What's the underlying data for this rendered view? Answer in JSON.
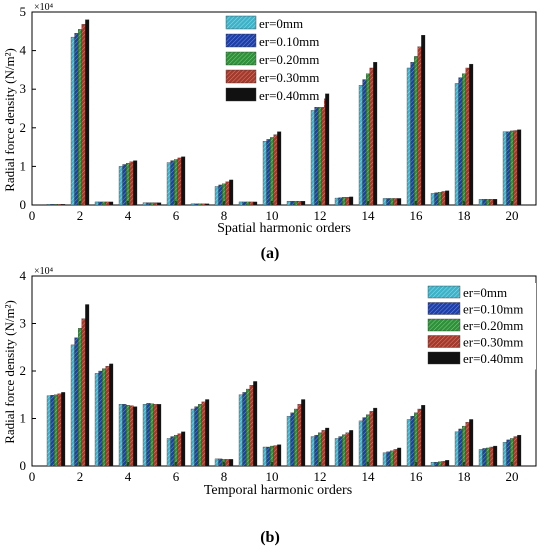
{
  "colors": {
    "series": [
      "#3fb2c8",
      "#1f3fa8",
      "#2f8f3a",
      "#a23a2e",
      "#111111"
    ],
    "hatch": [
      "#8fe0ee",
      "#6f8fe0",
      "#7ad07f",
      "#e08070",
      "#555555"
    ]
  },
  "chart_data": [
    {
      "type": "bar",
      "caption": "(a)",
      "xlabel": "Spatial harmonic orders",
      "ylabel": "Radial force density (N/m²)",
      "exponent_label": "×10⁴",
      "xlim": [
        0,
        21
      ],
      "ylim": [
        0,
        5
      ],
      "x_ticks": [
        "0",
        "2",
        "4",
        "6",
        "8",
        "10",
        "12",
        "14",
        "16",
        "18",
        "20"
      ],
      "y_ticks": [
        "0",
        "1",
        "2",
        "3",
        "4",
        "5"
      ],
      "legend_position": "top-center",
      "categories": [
        1,
        2,
        3,
        4,
        5,
        6,
        7,
        8,
        9,
        10,
        11,
        12,
        13,
        14,
        15,
        16,
        17,
        18,
        19,
        20
      ],
      "series": [
        {
          "name": "er=0mm",
          "values": [
            0.02,
            4.35,
            0.08,
            1.0,
            0.06,
            1.1,
            0.03,
            0.48,
            0.08,
            1.65,
            0.1,
            2.45,
            0.18,
            3.1,
            0.17,
            3.55,
            0.3,
            3.15,
            0.15,
            1.9
          ]
        },
        {
          "name": "er=0.10mm",
          "values": [
            0.02,
            4.45,
            0.08,
            1.05,
            0.06,
            1.15,
            0.03,
            0.52,
            0.08,
            1.7,
            0.1,
            2.55,
            0.19,
            3.25,
            0.17,
            3.7,
            0.32,
            3.3,
            0.15,
            1.9
          ]
        },
        {
          "name": "er=0.20mm",
          "values": [
            0.02,
            4.55,
            0.08,
            1.08,
            0.06,
            1.18,
            0.03,
            0.55,
            0.08,
            1.75,
            0.1,
            2.65,
            0.2,
            3.4,
            0.17,
            3.85,
            0.33,
            3.4,
            0.15,
            1.92
          ]
        },
        {
          "name": "er=0.30mm",
          "values": [
            0.02,
            4.68,
            0.08,
            1.12,
            0.06,
            1.22,
            0.03,
            0.6,
            0.08,
            1.82,
            0.1,
            2.75,
            0.2,
            3.55,
            0.17,
            4.1,
            0.35,
            3.55,
            0.15,
            1.93
          ]
        },
        {
          "name": "er=0.40mm",
          "values": [
            0.02,
            4.8,
            0.08,
            1.15,
            0.06,
            1.25,
            0.03,
            0.65,
            0.08,
            1.9,
            0.1,
            2.88,
            0.21,
            3.7,
            0.17,
            4.4,
            0.37,
            3.65,
            0.15,
            1.95
          ]
        }
      ]
    },
    {
      "type": "bar",
      "caption": "(b)",
      "xlabel": "Temporal harmonic orders",
      "ylabel": "Radial force density (N/m²)",
      "exponent_label": "×10⁴",
      "xlim": [
        0,
        21
      ],
      "ylim": [
        0,
        4
      ],
      "x_ticks": [
        "0",
        "2",
        "4",
        "6",
        "8",
        "10",
        "12",
        "14",
        "16",
        "18",
        "20"
      ],
      "y_ticks": [
        "0",
        "1",
        "2",
        "3",
        "4"
      ],
      "legend_position": "top-right",
      "categories": [
        1,
        2,
        3,
        4,
        5,
        6,
        7,
        8,
        9,
        10,
        11,
        12,
        13,
        14,
        15,
        16,
        17,
        18,
        19,
        20
      ],
      "series": [
        {
          "name": "er=0mm",
          "values": [
            1.48,
            2.55,
            1.95,
            1.3,
            1.3,
            0.58,
            1.2,
            0.15,
            1.5,
            0.4,
            1.05,
            0.62,
            0.58,
            0.95,
            0.28,
            0.98,
            0.08,
            0.72,
            0.35,
            0.5
          ]
        },
        {
          "name": "er=0.10mm",
          "values": [
            1.49,
            2.7,
            2.0,
            1.3,
            1.32,
            0.62,
            1.25,
            0.15,
            1.55,
            0.4,
            1.12,
            0.65,
            0.62,
            1.02,
            0.3,
            1.05,
            0.08,
            0.78,
            0.37,
            0.55
          ]
        },
        {
          "name": "er=0.20mm",
          "values": [
            1.5,
            2.9,
            2.05,
            1.28,
            1.31,
            0.65,
            1.3,
            0.14,
            1.62,
            0.42,
            1.2,
            0.7,
            0.66,
            1.08,
            0.32,
            1.12,
            0.09,
            0.84,
            0.38,
            0.58
          ]
        },
        {
          "name": "er=0.30mm",
          "values": [
            1.52,
            3.1,
            2.1,
            1.27,
            1.3,
            0.68,
            1.35,
            0.14,
            1.7,
            0.43,
            1.3,
            0.75,
            0.7,
            1.15,
            0.35,
            1.2,
            0.1,
            0.92,
            0.4,
            0.62
          ]
        },
        {
          "name": "er=0.40mm",
          "values": [
            1.55,
            3.4,
            2.15,
            1.25,
            1.3,
            0.72,
            1.4,
            0.14,
            1.78,
            0.45,
            1.4,
            0.8,
            0.75,
            1.22,
            0.38,
            1.28,
            0.12,
            0.98,
            0.42,
            0.65
          ]
        }
      ]
    }
  ]
}
